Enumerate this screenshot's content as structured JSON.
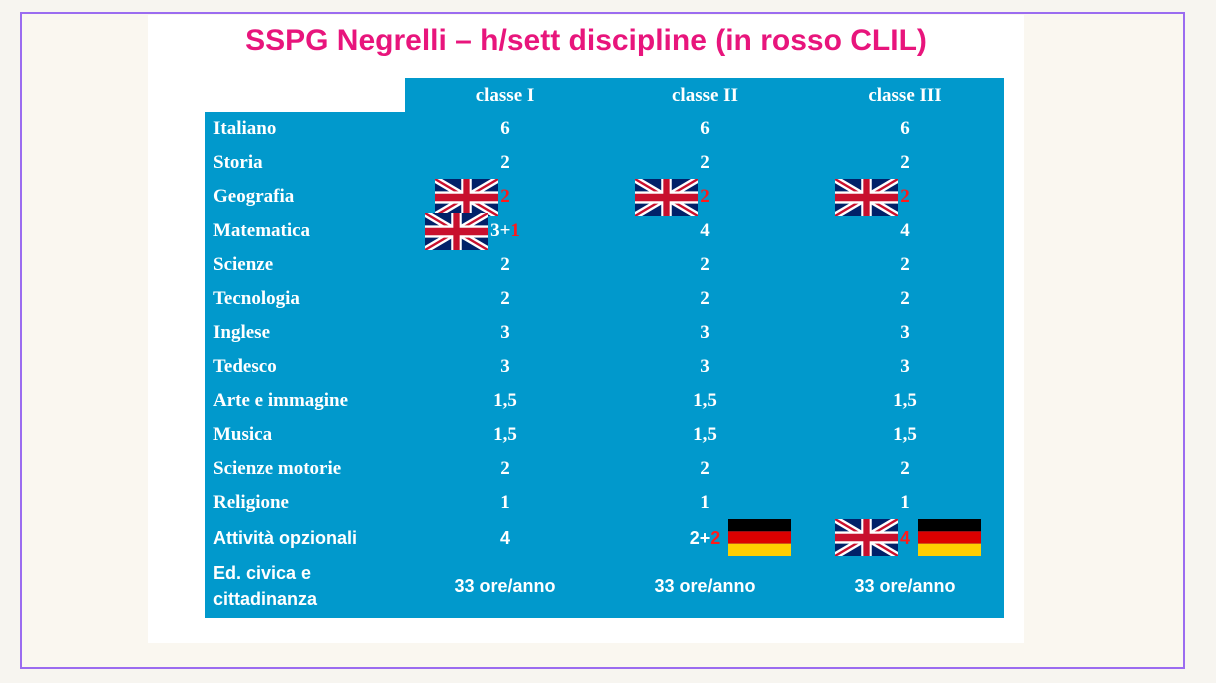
{
  "title": "SSPG Negrelli – h/sett discipline (in rosso CLIL)",
  "columns": [
    "classe I",
    "classe II",
    "classe III"
  ],
  "rows": [
    {
      "label": "Italiano",
      "cells": [
        {
          "text": "6"
        },
        {
          "text": "6"
        },
        {
          "text": "6"
        }
      ]
    },
    {
      "label": "Storia",
      "cells": [
        {
          "text": "2"
        },
        {
          "text": "2"
        },
        {
          "text": "2"
        }
      ]
    },
    {
      "label": "Geografia",
      "cells": [
        {
          "text": "",
          "red": "2",
          "pre": [
            "uk-flag"
          ]
        },
        {
          "text": "",
          "red": "2",
          "pre": [
            "uk-flag"
          ]
        },
        {
          "text": "",
          "red": "2",
          "pre": [
            "uk-flag"
          ]
        }
      ]
    },
    {
      "label": "Matematica",
      "cells": [
        {
          "text": "3+",
          "red": "1",
          "pre": [
            "uk-flag"
          ]
        },
        {
          "text": "4"
        },
        {
          "text": "4"
        }
      ]
    },
    {
      "label": "Scienze",
      "cells": [
        {
          "text": "2"
        },
        {
          "text": "2"
        },
        {
          "text": "2"
        }
      ]
    },
    {
      "label": "Tecnologia",
      "cells": [
        {
          "text": "2"
        },
        {
          "text": "2"
        },
        {
          "text": "2"
        }
      ]
    },
    {
      "label": "Inglese",
      "cells": [
        {
          "text": "3"
        },
        {
          "text": "3"
        },
        {
          "text": "3"
        }
      ]
    },
    {
      "label": "Tedesco",
      "cells": [
        {
          "text": "3"
        },
        {
          "text": "3"
        },
        {
          "text": "3"
        }
      ]
    },
    {
      "label": "Arte e immagine",
      "cells": [
        {
          "text": "1,5"
        },
        {
          "text": "1,5"
        },
        {
          "text": "1,5"
        }
      ]
    },
    {
      "label": "Musica",
      "cells": [
        {
          "text": "1,5"
        },
        {
          "text": "1,5"
        },
        {
          "text": "1,5"
        }
      ]
    },
    {
      "label": "Scienze motorie",
      "cells": [
        {
          "text": "2"
        },
        {
          "text": "2"
        },
        {
          "text": "2"
        }
      ]
    },
    {
      "label": "Religione",
      "cells": [
        {
          "text": "1"
        },
        {
          "text": "1"
        },
        {
          "text": "1"
        }
      ]
    },
    {
      "label": "Attività opzionali",
      "sans": true,
      "cells": [
        {
          "text": "4"
        },
        {
          "text": "2+",
          "red": "2",
          "post": [
            "de-flag"
          ]
        },
        {
          "text": "",
          "red": "4",
          "pre": [
            "uk-flag"
          ],
          "post": [
            "de-flag"
          ]
        }
      ]
    },
    {
      "label": "Ed. civica e cittadinanza",
      "sans": true,
      "tall": true,
      "cells": [
        {
          "text": "33 ore/anno"
        },
        {
          "text": "33 ore/anno"
        },
        {
          "text": "33 ore/anno"
        }
      ]
    }
  ],
  "colors": {
    "table": "#0199cc",
    "title": "#e8157c",
    "clil": "#ff1a1a"
  }
}
